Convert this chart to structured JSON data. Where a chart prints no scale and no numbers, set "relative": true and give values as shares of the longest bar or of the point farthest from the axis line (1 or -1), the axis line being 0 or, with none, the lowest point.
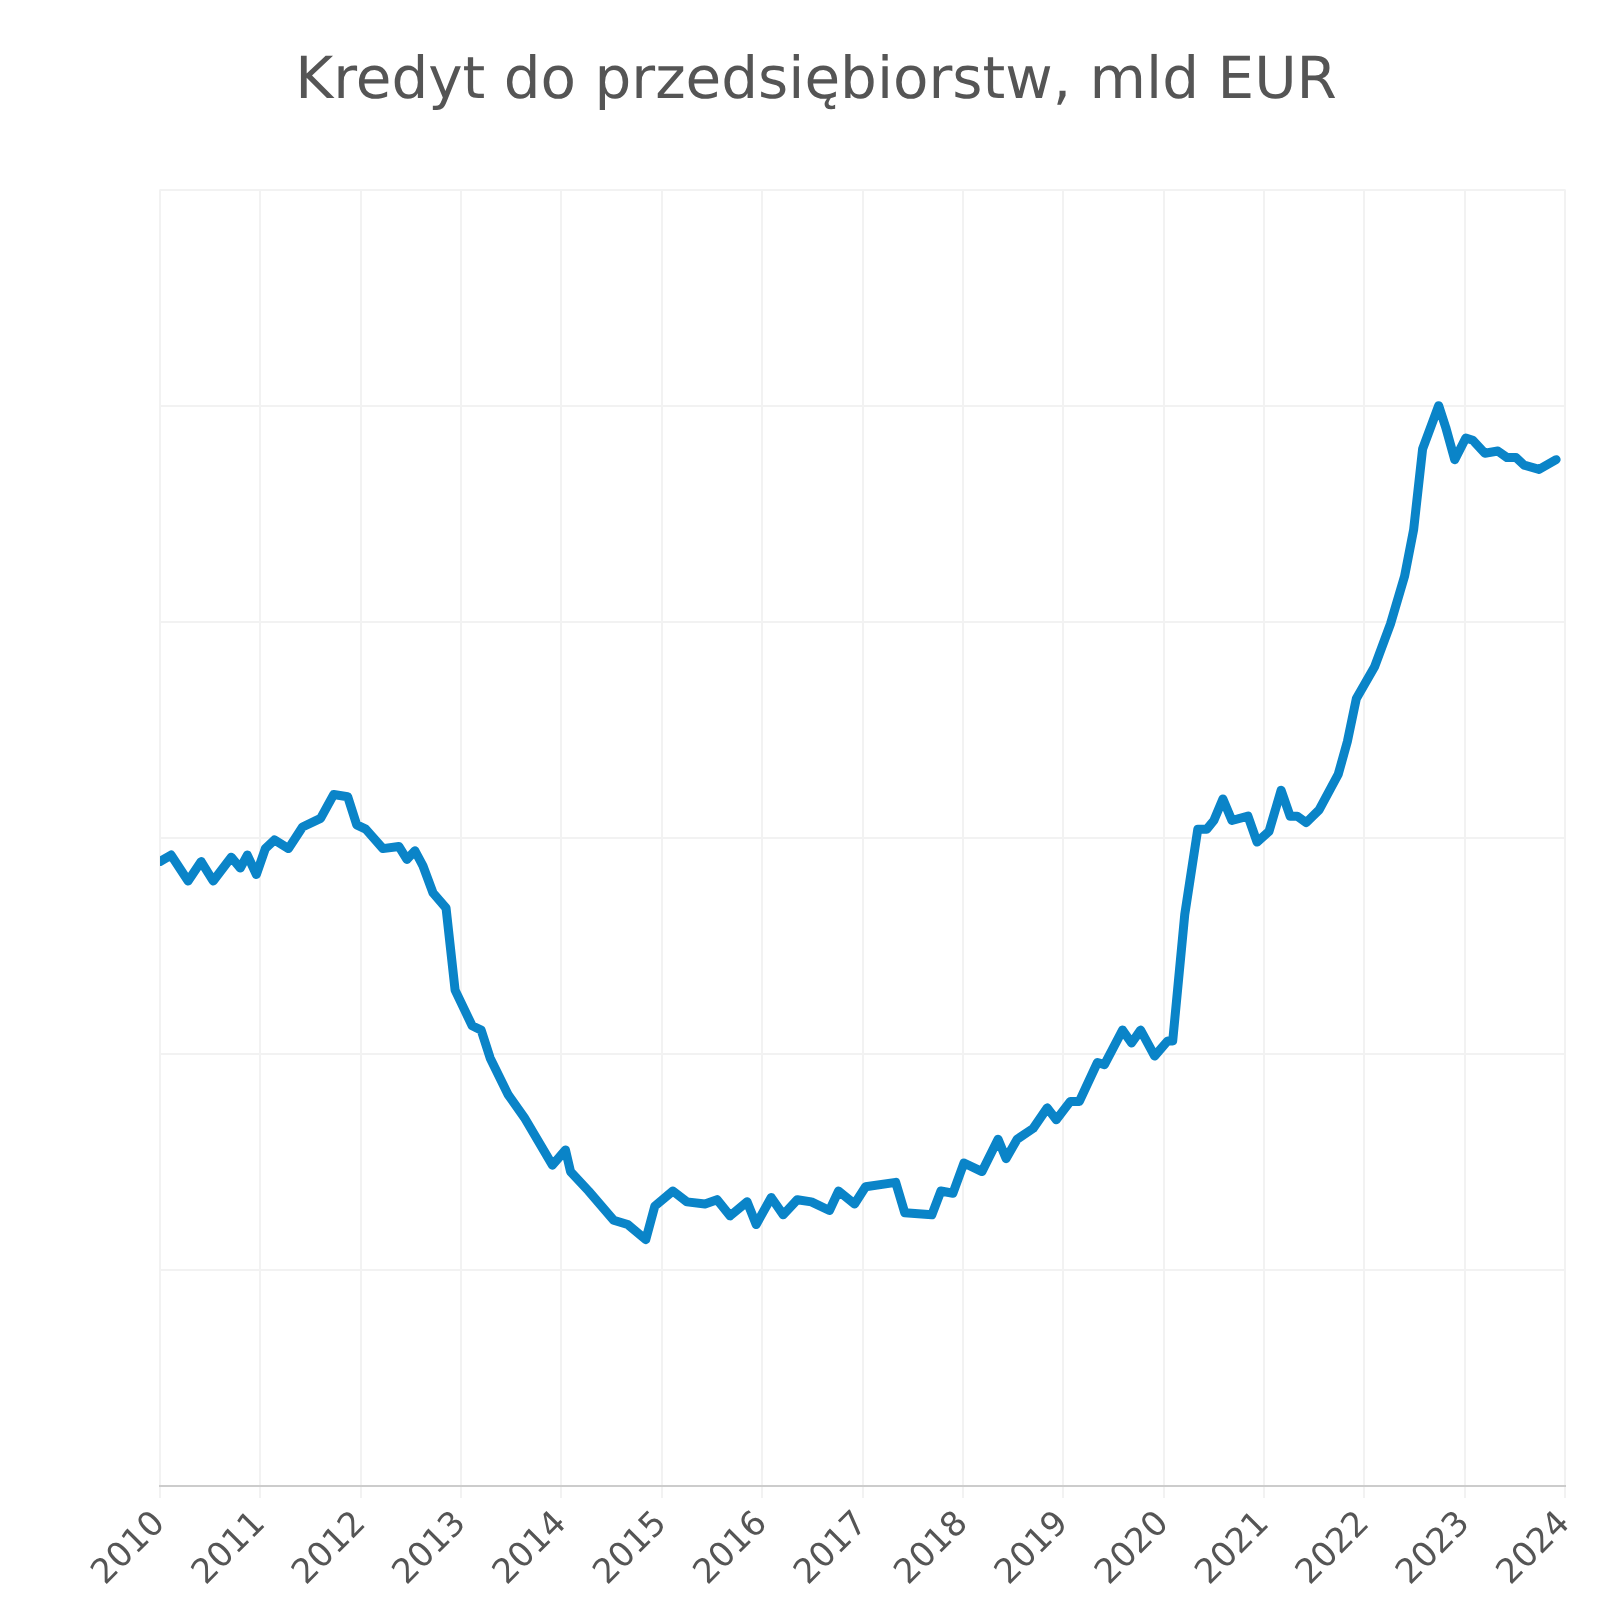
{
  "chart_data": {
    "type": "line",
    "title": "Kredyt do przedsiębiorstw, mld EUR",
    "relative": true,
    "grid": true,
    "marker": "none",
    "line_style": "solid",
    "xlim": [
      2010,
      2024
    ],
    "xticks": [
      2010,
      2011,
      2012,
      2013,
      2014,
      2015,
      2016,
      2017,
      2018,
      2019,
      2020,
      2021,
      2022,
      2023,
      2024
    ],
    "x": [
      2010.0,
      2010.11,
      2010.28,
      2010.41,
      2010.53,
      2010.71,
      2010.8,
      2010.87,
      2010.96,
      2011.05,
      2011.14,
      2011.28,
      2011.42,
      2011.6,
      2011.73,
      2011.87,
      2011.96,
      2012.05,
      2012.22,
      2012.38,
      2012.46,
      2012.54,
      2012.62,
      2012.72,
      2012.85,
      2012.94,
      2013.11,
      2013.2,
      2013.29,
      2013.47,
      2013.63,
      2013.91,
      2014.04,
      2014.09,
      2014.27,
      2014.52,
      2014.66,
      2014.84,
      2014.93,
      2015.11,
      2015.25,
      2015.43,
      2015.55,
      2015.68,
      2015.85,
      2015.94,
      2016.09,
      2016.21,
      2016.35,
      2016.49,
      2016.67,
      2016.76,
      2016.92,
      2017.03,
      2017.33,
      2017.42,
      2017.69,
      2017.78,
      2017.9,
      2018.01,
      2018.19,
      2018.35,
      2018.43,
      2018.54,
      2018.7,
      2018.84,
      2018.93,
      2019.07,
      2019.16,
      2019.34,
      2019.41,
      2019.59,
      2019.68,
      2019.77,
      2019.91,
      2020.04,
      2020.09,
      2020.21,
      2020.34,
      2020.43,
      2020.5,
      2020.59,
      2020.68,
      2020.84,
      2020.93,
      2021.05,
      2021.17,
      2021.26,
      2021.33,
      2021.42,
      2021.55,
      2021.74,
      2021.83,
      2021.92,
      2022.1,
      2022.26,
      2022.4,
      2022.49,
      2022.58,
      2022.74,
      2022.81,
      2022.9,
      2023.01,
      2023.08,
      2023.2,
      2023.33,
      2023.42,
      2023.51,
      2023.59,
      2023.74,
      2023.91
    ],
    "series": [
      {
        "color": "#0a84c8",
        "values": [
          0.578,
          0.584,
          0.56,
          0.578,
          0.56,
          0.582,
          0.572,
          0.584,
          0.566,
          0.59,
          0.598,
          0.59,
          0.61,
          0.618,
          0.64,
          0.638,
          0.612,
          0.608,
          0.59,
          0.592,
          0.58,
          0.588,
          0.574,
          0.549,
          0.535,
          0.459,
          0.426,
          0.422,
          0.396,
          0.362,
          0.341,
          0.297,
          0.311,
          0.291,
          0.273,
          0.246,
          0.242,
          0.228,
          0.259,
          0.273,
          0.263,
          0.261,
          0.265,
          0.25,
          0.263,
          0.242,
          0.267,
          0.251,
          0.265,
          0.263,
          0.255,
          0.273,
          0.261,
          0.277,
          0.281,
          0.253,
          0.251,
          0.273,
          0.271,
          0.299,
          0.291,
          0.321,
          0.303,
          0.321,
          0.331,
          0.35,
          0.339,
          0.356,
          0.356,
          0.392,
          0.39,
          0.422,
          0.41,
          0.422,
          0.398,
          0.412,
          0.412,
          0.529,
          0.608,
          0.608,
          0.616,
          0.636,
          0.616,
          0.62,
          0.596,
          0.606,
          0.644,
          0.62,
          0.62,
          0.614,
          0.626,
          0.659,
          0.689,
          0.729,
          0.758,
          0.798,
          0.842,
          0.885,
          0.96,
          1,
          0.98,
          0.95,
          0.97,
          0.968,
          0.956,
          0.958,
          0.952,
          0.952,
          0.945,
          0.941,
          0.95
        ]
      }
    ]
  }
}
